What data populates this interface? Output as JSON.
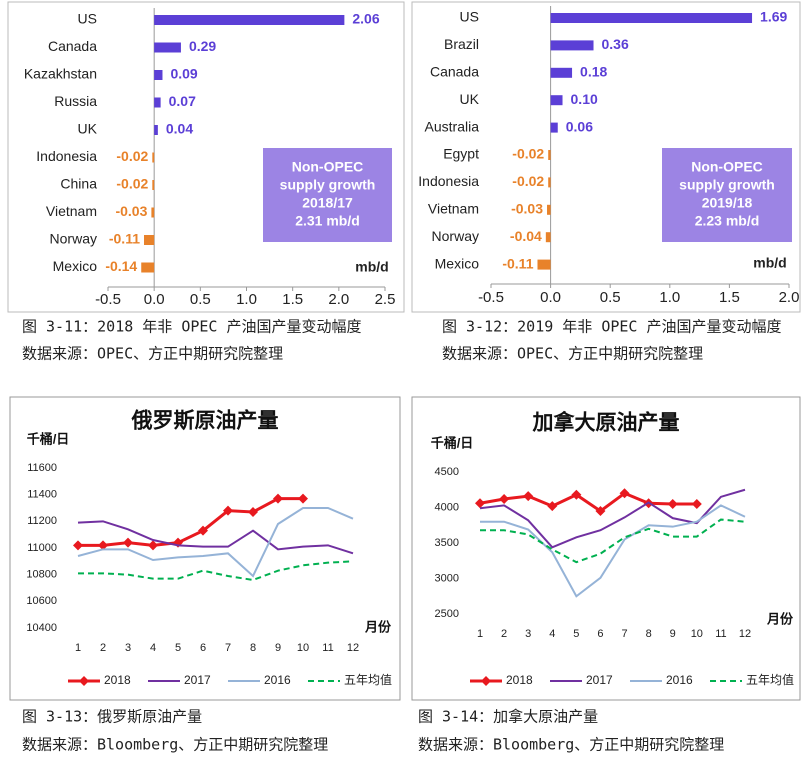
{
  "chart_data": [
    {
      "type": "hbar",
      "caption": "图 3-11：2018 年非 OPEC 产油国产量变动幅度",
      "source": "数据来源：OPEC、方正中期研究院整理",
      "categories": [
        "US",
        "Canada",
        "Kazakhstan",
        "Russia",
        "UK",
        "Indonesia",
        "China",
        "Vietnam",
        "Norway",
        "Mexico"
      ],
      "values": [
        2.06,
        0.29,
        0.09,
        0.07,
        0.04,
        -0.02,
        -0.02,
        -0.03,
        -0.11,
        -0.14
      ],
      "value_labels": [
        "2.06",
        "0.29",
        "0.09",
        "0.07",
        "0.04",
        "-0.02",
        "-0.02",
        "-0.03",
        "-0.11",
        "-0.14"
      ],
      "color_positive": "#5b3fd6",
      "color_negative": "#e8822a",
      "xlim": [
        -0.5,
        2.5
      ],
      "xticks": [
        -0.5,
        {
          "value": 0,
          "label": "0.0"
        },
        0.5,
        {
          "value": 1,
          "label": "1.0"
        },
        1.5,
        {
          "value": 2,
          "label": "2.0"
        },
        2.5
      ],
      "unit": "mb/d",
      "annotation": [
        "Non-OPEC",
        "supply growth",
        "2018/17",
        "2.31 mb/d"
      ],
      "annotation_color": "#9c84e4"
    },
    {
      "type": "hbar",
      "caption": "图 3-12：2019 年非 OPEC 产油国产量变动幅度",
      "source": "数据来源：OPEC、方正中期研究院整理",
      "categories": [
        "US",
        "Brazil",
        "Canada",
        "UK",
        "Australia",
        "Egypt",
        "Indonesia",
        "Vietnam",
        "Norway",
        "Mexico"
      ],
      "values": [
        1.69,
        0.36,
        0.18,
        0.1,
        0.06,
        -0.02,
        -0.02,
        -0.03,
        -0.04,
        -0.11
      ],
      "value_labels": [
        "1.69",
        "0.36",
        "0.18",
        "0.10",
        "0.06",
        "-0.02",
        "-0.02",
        "-0.03",
        "-0.04",
        "-0.11"
      ],
      "color_positive": "#5b3fd6",
      "color_negative": "#e8822a",
      "xlim": [
        -0.5,
        2.0
      ],
      "xticks": [
        -0.5,
        {
          "value": 0,
          "label": "0.0"
        },
        0.5,
        {
          "value": 1,
          "label": "1.0"
        },
        1.5,
        {
          "value": 2,
          "label": "2.0"
        }
      ],
      "unit": "mb/d",
      "annotation": [
        "Non-OPEC",
        "supply growth",
        "2019/18",
        "2.23 mb/d"
      ],
      "annotation_color": "#9c84e4"
    },
    {
      "type": "line",
      "title": "俄罗斯原油产量",
      "caption": "图 3-13：俄罗斯原油产量",
      "source": "数据来源：Bloomberg、方正中期研究院整理",
      "y_label": "千桶/日",
      "x_label": "月份",
      "categories": [
        "1",
        "2",
        "3",
        "4",
        "5",
        "6",
        "7",
        "8",
        "9",
        "10",
        "11",
        "12"
      ],
      "ylim": [
        10400,
        11600
      ],
      "yticks": [
        10400,
        10600,
        10800,
        11000,
        11200,
        11400,
        11600
      ],
      "series": [
        {
          "name": "2018",
          "color": "#e8191f",
          "marker": "diamond",
          "values": [
            11020,
            11020,
            11040,
            11020,
            11040,
            11130,
            11280,
            11270,
            11370,
            11370,
            null,
            null
          ]
        },
        {
          "name": "2017",
          "color": "#7030a0",
          "values": [
            11190,
            11200,
            11140,
            11060,
            11020,
            11010,
            11010,
            11130,
            10990,
            11010,
            11020,
            10960
          ]
        },
        {
          "name": "2016",
          "color": "#95b3d7",
          "values": [
            10940,
            10990,
            10990,
            10910,
            10930,
            10940,
            10960,
            10790,
            11180,
            11300,
            11300,
            11220
          ]
        },
        {
          "name": "五年均值",
          "color": "#00b050",
          "dashed": true,
          "values": [
            10810,
            10810,
            10800,
            10770,
            10770,
            10830,
            10790,
            10760,
            10830,
            10870,
            10890,
            10900
          ]
        }
      ]
    },
    {
      "type": "line",
      "title": "加拿大原油产量",
      "caption": "图 3-14：加拿大原油产量",
      "source": "数据来源：Bloomberg、方正中期研究院整理",
      "y_label": "千桶/日",
      "x_label": "月份",
      "categories": [
        "1",
        "2",
        "3",
        "4",
        "5",
        "6",
        "7",
        "8",
        "9",
        "10",
        "11",
        "12"
      ],
      "ylim": [
        2500,
        4500
      ],
      "yticks": [
        2500,
        3000,
        3500,
        4000,
        4500
      ],
      "series": [
        {
          "name": "2018",
          "color": "#e8191f",
          "marker": "diamond",
          "values": [
            4060,
            4120,
            4160,
            4020,
            4180,
            3950,
            4200,
            4060,
            4050,
            4050,
            null,
            null
          ]
        },
        {
          "name": "2017",
          "color": "#7030a0",
          "values": [
            3990,
            4030,
            3820,
            3440,
            3580,
            3680,
            3860,
            4070,
            3850,
            3780,
            4150,
            4250
          ]
        },
        {
          "name": "2016",
          "color": "#95b3d7",
          "values": [
            3800,
            3800,
            3690,
            3370,
            2750,
            3010,
            3550,
            3750,
            3730,
            3800,
            4030,
            3870
          ]
        },
        {
          "name": "五年均值",
          "color": "#00b050",
          "dashed": true,
          "values": [
            3680,
            3680,
            3620,
            3410,
            3230,
            3350,
            3580,
            3700,
            3590,
            3590,
            3830,
            3800
          ]
        }
      ]
    }
  ]
}
